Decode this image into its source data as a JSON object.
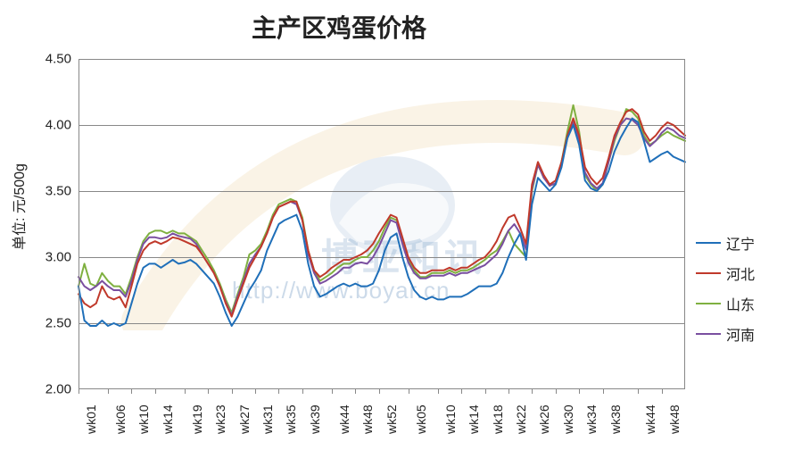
{
  "chart": {
    "type": "line",
    "title": "主产区鸡蛋价格",
    "ylabel": "单位: 元/500g",
    "title_fontsize": 28,
    "ylabel_fontsize": 16,
    "axis_label_fontsize": 15,
    "background_color": "#ffffff",
    "grid_color": "#888888",
    "border_color": "#888888",
    "line_width": 2,
    "ylim": [
      2.0,
      4.5
    ],
    "yticks": [
      2.0,
      2.5,
      3.0,
      3.5,
      4.0,
      4.5
    ],
    "ytick_labels": [
      "2.00",
      "2.50",
      "3.00",
      "3.50",
      "4.00",
      "4.50"
    ],
    "x_count": 104,
    "xtick_positions": [
      0,
      5,
      9,
      13,
      18,
      22,
      26,
      30,
      34,
      38,
      43,
      47,
      51,
      56,
      61,
      65,
      69,
      73,
      77,
      81,
      85,
      89,
      95,
      99
    ],
    "xtick_labels": [
      "wk01",
      "wk06",
      "wk10",
      "wk14",
      "wk19",
      "wk23",
      "wk27",
      "wk31",
      "wk35",
      "wk39",
      "wk44",
      "wk48",
      "wk52",
      "wk05",
      "wk10",
      "wk14",
      "wk18",
      "wk22",
      "wk26",
      "wk30",
      "wk34",
      "wk38",
      "wk44",
      "wk48"
    ],
    "legend": [
      {
        "label": "辽宁",
        "color": "#1f6fb9"
      },
      {
        "label": "河北",
        "color": "#c0392b"
      },
      {
        "label": "山东",
        "color": "#7fb040"
      },
      {
        "label": "河南",
        "color": "#7a4fa0"
      }
    ],
    "watermark": {
      "url_text": "http://www.boyar.cn",
      "brand_text": "博亚和讯",
      "arc_color": "#d9a437",
      "bird_color": "#4a7db3"
    },
    "series": {
      "liaoning": {
        "label": "辽宁",
        "color": "#1f6fb9",
        "values": [
          2.78,
          2.52,
          2.48,
          2.48,
          2.52,
          2.48,
          2.5,
          2.48,
          2.5,
          2.65,
          2.8,
          2.92,
          2.95,
          2.95,
          2.92,
          2.95,
          2.98,
          2.95,
          2.96,
          2.98,
          2.95,
          2.9,
          2.85,
          2.8,
          2.7,
          2.58,
          2.48,
          2.55,
          2.65,
          2.75,
          2.82,
          2.9,
          3.05,
          3.15,
          3.25,
          3.28,
          3.3,
          3.32,
          3.2,
          2.95,
          2.78,
          2.7,
          2.72,
          2.75,
          2.78,
          2.8,
          2.78,
          2.8,
          2.78,
          2.78,
          2.8,
          2.9,
          3.05,
          3.15,
          3.18,
          3.0,
          2.85,
          2.75,
          2.7,
          2.68,
          2.7,
          2.68,
          2.68,
          2.7,
          2.7,
          2.7,
          2.72,
          2.75,
          2.78,
          2.78,
          2.78,
          2.8,
          2.88,
          3.0,
          3.1,
          3.18,
          2.98,
          3.4,
          3.6,
          3.55,
          3.5,
          3.55,
          3.68,
          3.9,
          4.0,
          3.85,
          3.58,
          3.52,
          3.5,
          3.55,
          3.65,
          3.8,
          3.9,
          3.98,
          4.05,
          4.02,
          3.88,
          3.72,
          3.75,
          3.78,
          3.8,
          3.76,
          3.74,
          3.72
        ]
      },
      "hebei": {
        "label": "河北",
        "color": "#c0392b",
        "values": [
          2.72,
          2.65,
          2.62,
          2.65,
          2.78,
          2.7,
          2.68,
          2.7,
          2.62,
          2.78,
          2.95,
          3.05,
          3.1,
          3.12,
          3.1,
          3.12,
          3.15,
          3.14,
          3.12,
          3.1,
          3.08,
          3.02,
          2.95,
          2.88,
          2.78,
          2.65,
          2.55,
          2.68,
          2.8,
          2.92,
          3.0,
          3.08,
          3.18,
          3.3,
          3.38,
          3.4,
          3.42,
          3.42,
          3.28,
          3.05,
          2.9,
          2.85,
          2.88,
          2.92,
          2.95,
          2.98,
          2.98,
          3.0,
          3.02,
          3.05,
          3.1,
          3.18,
          3.25,
          3.32,
          3.3,
          3.15,
          3.0,
          2.92,
          2.88,
          2.88,
          2.9,
          2.9,
          2.9,
          2.92,
          2.9,
          2.92,
          2.92,
          2.95,
          2.98,
          3.0,
          3.05,
          3.12,
          3.22,
          3.3,
          3.32,
          3.22,
          3.1,
          3.55,
          3.72,
          3.62,
          3.55,
          3.58,
          3.72,
          3.92,
          4.05,
          3.92,
          3.68,
          3.6,
          3.55,
          3.6,
          3.75,
          3.92,
          4.02,
          4.1,
          4.12,
          4.08,
          3.95,
          3.88,
          3.92,
          3.98,
          4.02,
          4.0,
          3.96,
          3.92
        ]
      },
      "shandong": {
        "label": "山东",
        "color": "#7fb040",
        "values": [
          2.78,
          2.95,
          2.8,
          2.78,
          2.88,
          2.82,
          2.78,
          2.78,
          2.72,
          2.85,
          3.0,
          3.12,
          3.18,
          3.2,
          3.2,
          3.18,
          3.2,
          3.18,
          3.18,
          3.15,
          3.12,
          3.05,
          2.98,
          2.9,
          2.8,
          2.68,
          2.58,
          2.72,
          2.85,
          3.02,
          3.05,
          3.1,
          3.2,
          3.32,
          3.4,
          3.42,
          3.44,
          3.42,
          3.3,
          3.05,
          2.9,
          2.82,
          2.85,
          2.88,
          2.92,
          2.95,
          2.95,
          2.98,
          3.0,
          3.0,
          3.05,
          3.12,
          3.22,
          3.3,
          3.28,
          3.12,
          2.98,
          2.9,
          2.85,
          2.85,
          2.88,
          2.88,
          2.88,
          2.9,
          2.88,
          2.9,
          2.9,
          2.92,
          2.95,
          2.98,
          3.02,
          3.05,
          3.12,
          3.2,
          3.1,
          3.05,
          3.0,
          3.5,
          3.7,
          3.6,
          3.55,
          3.55,
          3.72,
          3.95,
          4.15,
          3.95,
          3.62,
          3.55,
          3.5,
          3.55,
          3.72,
          3.88,
          4.0,
          4.12,
          4.1,
          4.05,
          3.92,
          3.85,
          3.88,
          3.92,
          3.95,
          3.92,
          3.9,
          3.88
        ]
      },
      "henan": {
        "label": "河南",
        "color": "#7a4fa0",
        "values": [
          2.85,
          2.78,
          2.75,
          2.78,
          2.82,
          2.78,
          2.75,
          2.75,
          2.7,
          2.82,
          2.98,
          3.1,
          3.15,
          3.15,
          3.14,
          3.15,
          3.18,
          3.16,
          3.15,
          3.14,
          3.1,
          3.02,
          2.95,
          2.88,
          2.78,
          2.66,
          2.56,
          2.7,
          2.82,
          2.95,
          3.02,
          3.08,
          3.18,
          3.3,
          3.38,
          3.4,
          3.42,
          3.4,
          3.28,
          3.02,
          2.88,
          2.8,
          2.82,
          2.85,
          2.88,
          2.92,
          2.92,
          2.95,
          2.96,
          2.95,
          3.0,
          3.08,
          3.18,
          3.28,
          3.26,
          3.1,
          2.96,
          2.88,
          2.84,
          2.84,
          2.86,
          2.86,
          2.86,
          2.88,
          2.86,
          2.88,
          2.88,
          2.9,
          2.92,
          2.94,
          2.98,
          3.02,
          3.1,
          3.2,
          3.25,
          3.18,
          3.06,
          3.52,
          3.7,
          3.6,
          3.54,
          3.56,
          3.7,
          3.9,
          4.02,
          3.88,
          3.64,
          3.56,
          3.52,
          3.56,
          3.72,
          3.9,
          4.0,
          4.05,
          4.04,
          4.0,
          3.9,
          3.84,
          3.88,
          3.94,
          3.98,
          3.96,
          3.92,
          3.9
        ]
      }
    }
  }
}
